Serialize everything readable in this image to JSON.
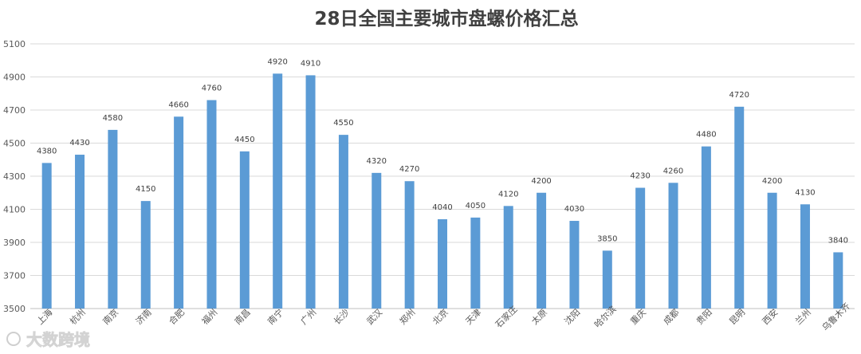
{
  "chart_data": {
    "type": "bar",
    "title": "28日全国主要城市盘螺价格汇总",
    "categories": [
      "上海",
      "杭州",
      "南京",
      "济南",
      "合肥",
      "福州",
      "南昌",
      "南宁",
      "广州",
      "长沙",
      "武汉",
      "郑州",
      "北京",
      "天津",
      "石家庄",
      "太原",
      "沈阳",
      "哈尔滨",
      "重庆",
      "成都",
      "贵阳",
      "昆明",
      "西安",
      "兰州",
      "乌鲁木齐"
    ],
    "values": [
      4380,
      4430,
      4580,
      4150,
      4660,
      4760,
      4450,
      4920,
      4910,
      4550,
      4320,
      4270,
      4040,
      4050,
      4120,
      4200,
      4030,
      3850,
      4230,
      4260,
      4480,
      4720,
      4200,
      4130,
      3840
    ],
    "y_ticks": [
      3500,
      3700,
      3900,
      4100,
      4300,
      4500,
      4700,
      4900,
      5100
    ],
    "ylim": [
      3500,
      5100
    ],
    "xlabel": "",
    "ylabel": "",
    "grid": true,
    "legend": "none",
    "bar_color": "#5B9BD5",
    "grid_color": "#D9D9D9"
  },
  "watermark": {
    "text": "大数跨境"
  }
}
